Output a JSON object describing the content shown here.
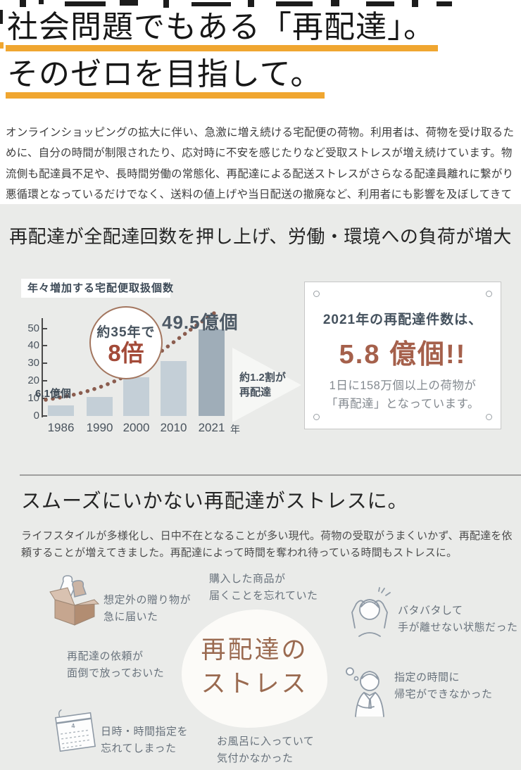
{
  "colors": {
    "marker_yellow": "#f0a630",
    "brick_red": "#a34a38",
    "card_brick": "#a5604b",
    "bar_light": "#c4cfd7",
    "bar_dark": "#9fadb8",
    "dot_brown": "#8b5d4f",
    "section_bg": "#eaebe9"
  },
  "header": {
    "title_line1": "社会問題でもある「再配達」。",
    "title_line2": "そのゼロを目指して。"
  },
  "intro": {
    "text": "オンラインショッピングの拡大に伴い、急激に増え続ける宅配便の荷物。利用者は、荷物を受け取るために、自分の時間が制限されたり、応対時に不安を感じたりなど受取ストレスが増え続けています。物流側も配達員不足や、長時間労働の常態化、再配達による配送ストレスがさらなる配達員離れに繋がり悪循環となっているだけでなく、送料の値上げや当日配送の撤廃など、利用者にも影響を及ぼしてきています。"
  },
  "stat_section": {
    "heading": "再配達が全配達回数を押し上げ、労働・環境への負荷が増大",
    "chart_title": "年々増加する宅配便取扱個数",
    "badge_line1": "約35年で",
    "badge_line2": "8倍",
    "peak_label": "49.5億個",
    "first_label": "6.1億個",
    "arrow_line1": "約1.2割が",
    "arrow_line2": "再配達",
    "x_axis_unit": "年",
    "card": {
      "line1": "2021年の再配達件数は、",
      "line2": "5.8 億個!!",
      "line3": "1日に158万個以上の荷物が",
      "line4": "「再配達」となっています。"
    }
  },
  "chart_data": {
    "type": "bar",
    "title": "年々増加する宅配便取扱個数",
    "categories": [
      "1986",
      "1990",
      "2000",
      "2010",
      "2021"
    ],
    "values": [
      6.1,
      11,
      22,
      31.5,
      49.5
    ],
    "unit": "億個",
    "xlabel": "年",
    "ylabel": "",
    "ylim": [
      0,
      50
    ],
    "yticks": [
      0,
      10,
      20,
      30,
      40,
      50
    ],
    "grid": false,
    "highlight_last_bar": true,
    "trend_line": "dotted rising curve",
    "annotations": [
      "約35年で8倍",
      "49.5億個",
      "6.1億個",
      "約1.2割が再配達"
    ]
  },
  "stress_section": {
    "heading": "スムーズにいかない再配達がストレスに。",
    "paragraph": "ライフスタイルが多様化し、日中不在となることが多い現代。荷物の受取がうまくいかず、再配達を依頼することが増えてきました。再配達によって時間を奪われ待っている時間もストレスに。",
    "center_line1": "再配達の",
    "center_line2": "ストレス",
    "items": [
      {
        "icon": "gift-box-icon",
        "line1": "想定外の贈り物が",
        "line2": "急に届いた"
      },
      {
        "icon": "",
        "line1": "購入した商品が",
        "line2": "届くことを忘れていた"
      },
      {
        "icon": "flustered-person-icon",
        "line1": "バタバタして",
        "line2": "手が離せない状態だった"
      },
      {
        "icon": "",
        "line1": "再配達の依頼が",
        "line2": "面倒で放っておいた"
      },
      {
        "icon": "late-person-icon",
        "line1": "指定の時間に",
        "line2": "帰宅ができなかった"
      },
      {
        "icon": "calendar-icon",
        "line1": "日時・時間指定を",
        "line2": "忘れてしまった"
      },
      {
        "icon": "",
        "line1": "お風呂に入っていて",
        "line2": "気付かなかった"
      }
    ]
  }
}
